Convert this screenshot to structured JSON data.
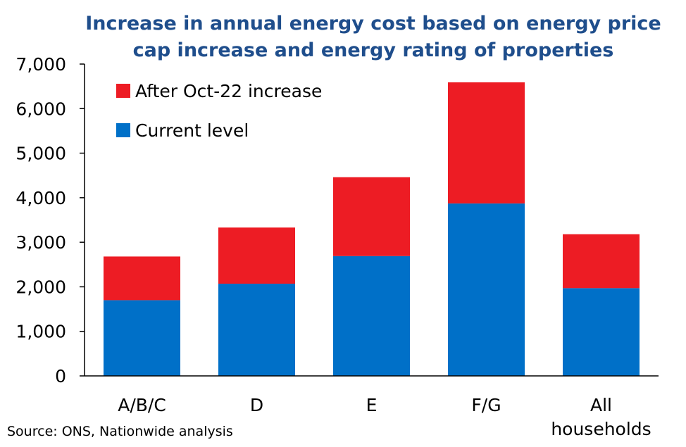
{
  "chart_data": {
    "type": "bar",
    "stacked": true,
    "title": "Increase in annual energy cost based on energy price cap increase and energy rating of properties",
    "title_lines": [
      "Increase in annual energy cost based on energy price",
      "cap increase and energy rating of properties"
    ],
    "categories": [
      "A/B/C",
      "D",
      "E",
      "F/G",
      "All households"
    ],
    "category_lines": [
      [
        "A/B/C"
      ],
      [
        "D"
      ],
      [
        "E"
      ],
      [
        "F/G"
      ],
      [
        "All",
        "households"
      ]
    ],
    "series": [
      {
        "name": "Current level",
        "color": "#0070c8",
        "values": [
          1700,
          2070,
          2690,
          3870,
          1970
        ]
      },
      {
        "name": "After Oct-22 increase",
        "color": "#ed1c24",
        "values": [
          980,
          1260,
          1770,
          2720,
          1210
        ]
      }
    ],
    "legend_order": [
      "After Oct-22 increase",
      "Current level"
    ],
    "legend_position": "top-left",
    "ylim": [
      0,
      7000
    ],
    "yticks": [
      0,
      1000,
      2000,
      3000,
      4000,
      5000,
      6000,
      7000
    ],
    "ytick_labels": [
      "0",
      "1,000",
      "2,000",
      "3,000",
      "4,000",
      "5,000",
      "6,000",
      "7,000"
    ],
    "grid": false,
    "xlabel": "",
    "ylabel": ""
  },
  "source": "Source: ONS, Nationwide analysis"
}
